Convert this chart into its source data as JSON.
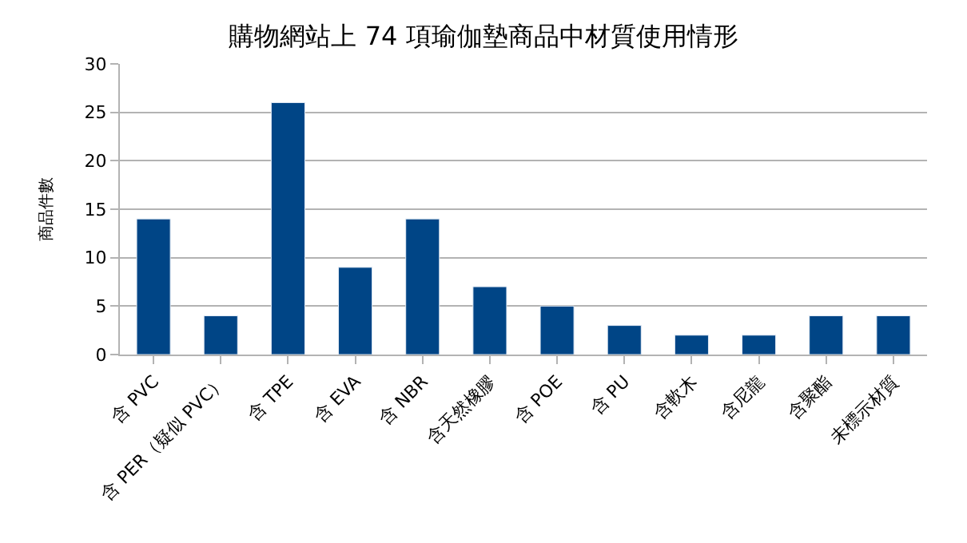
{
  "chart_data": {
    "type": "bar",
    "title": "購物網站上 74 項瑜伽墊商品中材質使用情形",
    "ylabel": "商品件數",
    "categories": [
      "含 PVC",
      "含 PER（疑似 PVC）",
      "含 TPE",
      "含 EVA",
      "含 NBR",
      "含天然橡膠",
      "含 POE",
      "含 PU",
      "含軟木",
      "含尼龍",
      "含聚酯",
      "未標示材質"
    ],
    "values": [
      14,
      4,
      26,
      9,
      14,
      7,
      5,
      3,
      2,
      2,
      4,
      4
    ],
    "color": "#004586",
    "ylim": [
      0,
      30
    ],
    "yticks": [
      0,
      5,
      10,
      15,
      20,
      25,
      30
    ],
    "grid": "y",
    "legend": false
  }
}
